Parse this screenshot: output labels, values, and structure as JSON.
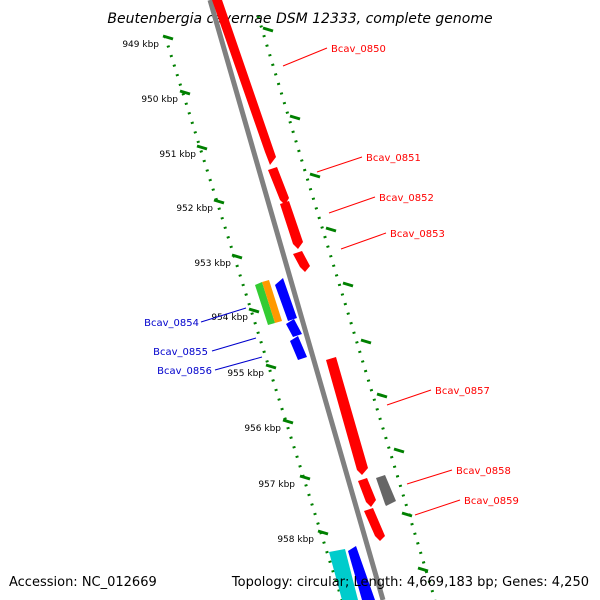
{
  "title": "Beutenbergia cavernae DSM 12333, complete genome",
  "footer": {
    "accession": "Accession: NC_012669",
    "summary": "Topology: circular; Length: 4,669,183 bp; Genes: 4,250"
  },
  "kbp_labels": [
    "949 kbp",
    "950 kbp",
    "951 kbp",
    "952 kbp",
    "953 kbp",
    "954 kbp",
    "955 kbp",
    "956 kbp",
    "957 kbp",
    "958 kbp"
  ],
  "genes": [
    {
      "label": "Bcav_0850",
      "strand": "plus",
      "color": "#ff0000"
    },
    {
      "label": "Bcav_0851",
      "strand": "plus",
      "color": "#ff0000"
    },
    {
      "label": "Bcav_0852",
      "strand": "plus",
      "color": "#ff0000"
    },
    {
      "label": "Bcav_0853",
      "strand": "plus",
      "color": "#ff0000"
    },
    {
      "label": "Bcav_0854",
      "strand": "minus",
      "color": "#0000ff"
    },
    {
      "label": "Bcav_0855",
      "strand": "minus",
      "color": "#0000ff"
    },
    {
      "label": "Bcav_0856",
      "strand": "minus",
      "color": "#0000ff"
    },
    {
      "label": "Bcav_0857",
      "strand": "plus",
      "color": "#ff0000"
    },
    {
      "label": "Bcav_0858",
      "strand": "plus",
      "color": "#ff0000"
    },
    {
      "label": "Bcav_0859",
      "strand": "plus",
      "color": "#ff0000"
    }
  ],
  "colors": {
    "backbone": "#808080",
    "dotted_track": "#008000",
    "plus_label": "#ff0000",
    "minus_label": "#0000cc",
    "feature_gray": "#666666",
    "feature_green": "#33cc33",
    "feature_orange": "#ff9900",
    "feature_cyan": "#00cccc"
  }
}
